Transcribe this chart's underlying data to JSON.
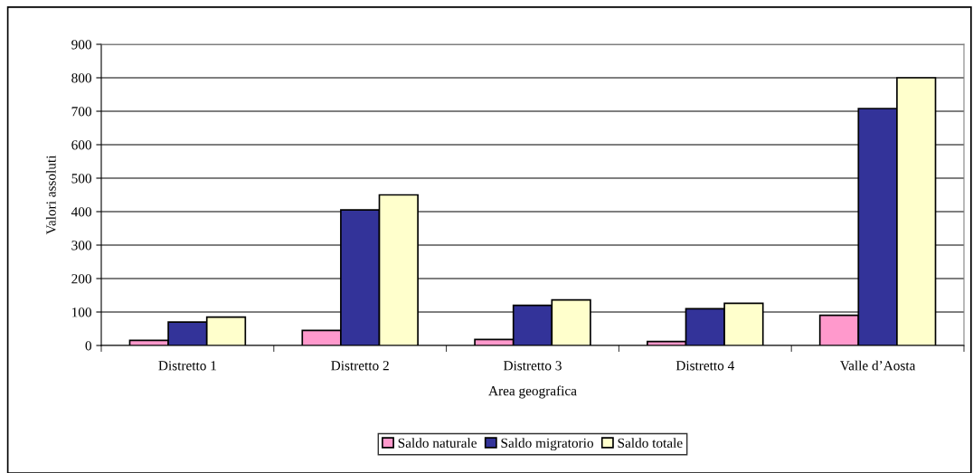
{
  "chart_data": {
    "type": "bar",
    "xlabel": "Area geografica",
    "ylabel": "Valori assoluti",
    "categories": [
      "Distretto 1",
      "Distretto 2",
      "Distretto 3",
      "Distretto 4",
      "Valle d’Aosta"
    ],
    "series": [
      {
        "name": "Saldo naturale",
        "color": "#ff99cc",
        "values": [
          15,
          45,
          18,
          12,
          90
        ]
      },
      {
        "name": "Saldo migratorio",
        "color": "#333399",
        "values": [
          70,
          405,
          120,
          110,
          708
        ]
      },
      {
        "name": "Saldo totale",
        "color": "#ffffcc",
        "values": [
          85,
          450,
          136,
          126,
          800
        ]
      }
    ],
    "ylim": [
      0,
      900
    ],
    "yticks": [
      0,
      100,
      200,
      300,
      400,
      500,
      600,
      700,
      800,
      900
    ],
    "grid": "y",
    "legend": "bottom"
  }
}
